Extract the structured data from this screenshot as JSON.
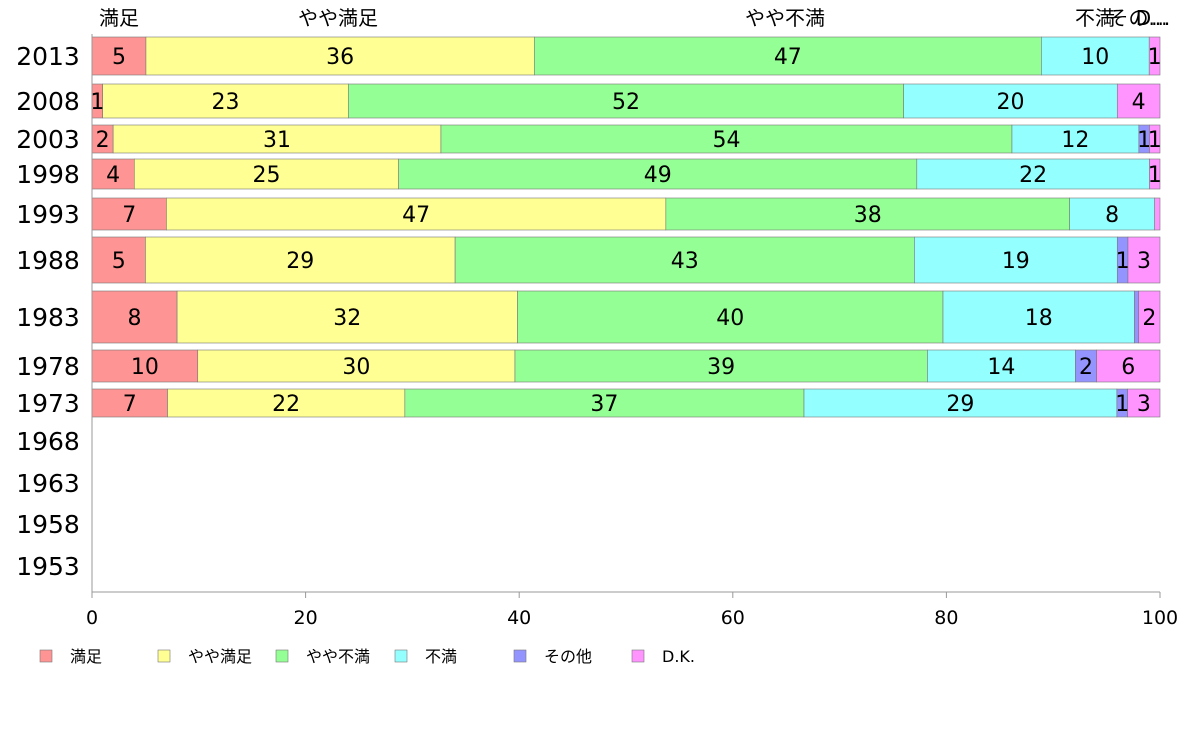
{
  "chart_data": {
    "type": "bar",
    "orientation": "horizontal",
    "stacked": true,
    "title": "",
    "xlabel": "",
    "ylabel": "",
    "xlim": [
      0,
      100
    ],
    "x_ticks": [
      "0",
      "20",
      "40",
      "60",
      "80",
      "100"
    ],
    "grid": false,
    "legend_position": "bottom",
    "top_labels": [
      "満足",
      "やや満足",
      "やや不満",
      "不満",
      "その...",
      "D..."
    ],
    "categories": [
      "2013",
      "2008",
      "2003",
      "1998",
      "1993",
      "1988",
      "1983",
      "1978",
      "1973",
      "1968",
      "1963",
      "1958",
      "1953"
    ],
    "series": [
      {
        "name": "満足",
        "color": "#ff9494",
        "values": [
          5,
          1,
          2,
          4,
          7,
          5,
          8,
          10,
          7,
          null,
          null,
          null,
          null
        ]
      },
      {
        "name": "やや満足",
        "color": "#ffff94",
        "values": [
          36,
          23,
          31,
          25,
          47,
          29,
          32,
          30,
          22,
          null,
          null,
          null,
          null
        ]
      },
      {
        "name": "やや不満",
        "color": "#94ff94",
        "values": [
          47,
          52,
          54,
          49,
          38,
          43,
          40,
          39,
          37,
          null,
          null,
          null,
          null
        ]
      },
      {
        "name": "不満",
        "color": "#94ffff",
        "values": [
          10,
          20,
          12,
          22,
          8,
          19,
          18,
          14,
          29,
          null,
          null,
          null,
          null
        ]
      },
      {
        "name": "その他",
        "color": "#9494ff",
        "values": [
          0,
          0,
          1,
          0,
          0,
          1,
          0.4,
          2,
          1,
          null,
          null,
          null,
          null
        ]
      },
      {
        "name": "D.K.",
        "color": "#ff94ff",
        "values": [
          1,
          4,
          1,
          1,
          0.5,
          3,
          2,
          6,
          3,
          null,
          null,
          null,
          null
        ]
      }
    ]
  }
}
